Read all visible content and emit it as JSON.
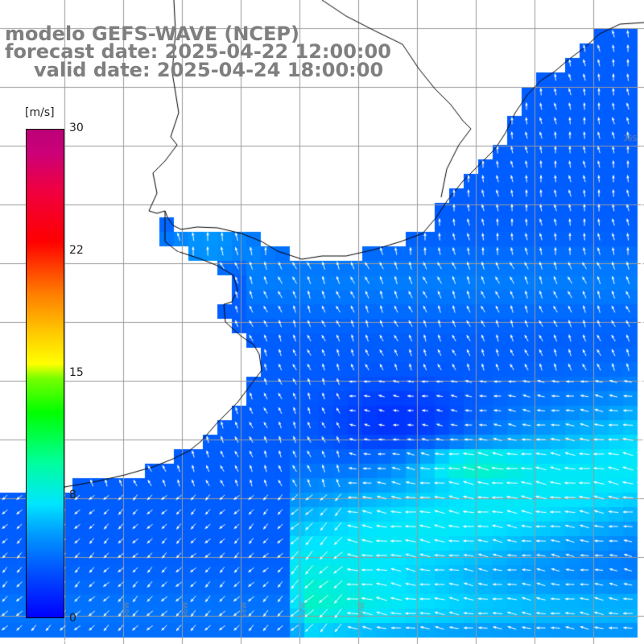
{
  "header": {
    "line1": "modelo GEFS-WAVE (NCEP)",
    "line2": "forecast date: 2025-04-22 12:00:00",
    "line3": "valid date: 2025-04-24 18:00:00"
  },
  "colorbar": {
    "unit": "[m/s]",
    "ticks": [
      "30",
      "22",
      "15",
      "8",
      "0"
    ],
    "tick_values": [
      30,
      22,
      15,
      8,
      0
    ],
    "min": 0,
    "max": 30,
    "colors": [
      "#0000ff",
      "#0099ff",
      "#00e5ff",
      "#00ff00",
      "#ffff00",
      "#ff7700",
      "#ff0000",
      "#bb0077"
    ]
  },
  "map": {
    "variable": "wind speed and direction",
    "land_color": "#ffffff",
    "coast_color": "#000000",
    "grid_color": "#9a9a9a",
    "arrow_color": "#ffffff",
    "grid_labels": [
      "36S",
      "58W",
      "56W",
      "54W",
      "52W",
      "50W"
    ]
  }
}
